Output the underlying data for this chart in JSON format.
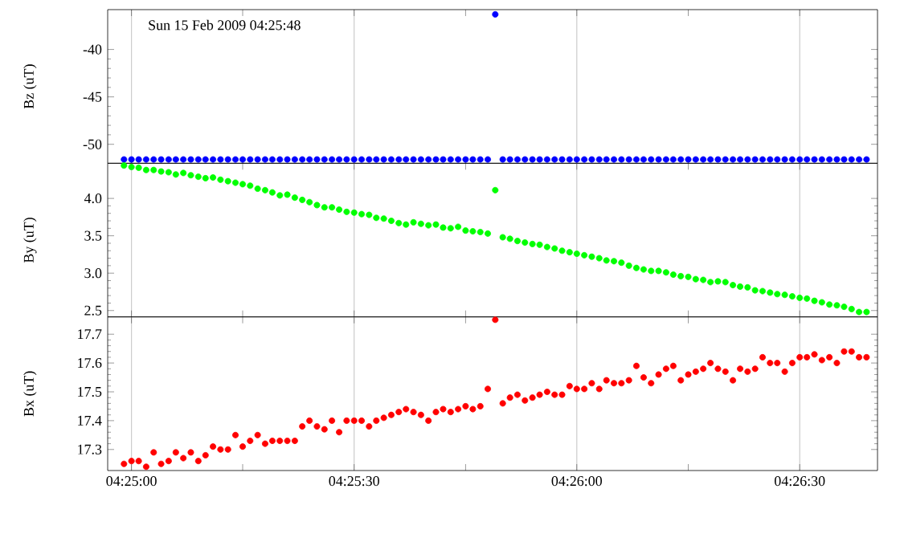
{
  "chart_data": [
    {
      "type": "scatter",
      "ylabel": "Bz (uT)",
      "color": "#0000ff",
      "marker": "circle",
      "grid": "x",
      "tick_labels": "y",
      "annotations": [
        "Sun 15 Feb 2009 04:25:48"
      ],
      "xlim": [
        4.41578,
        4.44458
      ],
      "ylim": [
        -52,
        -35.8
      ],
      "yticks": [
        -50,
        -45,
        -40
      ],
      "x": [
        4.41639,
        4.41667,
        4.41694,
        4.41722,
        4.4175,
        4.41778,
        4.41806,
        4.41833,
        4.41861,
        4.41889,
        4.41917,
        4.41944,
        4.41972,
        4.42,
        4.42028,
        4.42056,
        4.42083,
        4.42111,
        4.42139,
        4.42167,
        4.42194,
        4.42222,
        4.4225,
        4.42278,
        4.42306,
        4.42333,
        4.42361,
        4.42389,
        4.42417,
        4.42444,
        4.42472,
        4.425,
        4.42528,
        4.42556,
        4.42583,
        4.42611,
        4.42639,
        4.42667,
        4.42694,
        4.42722,
        4.4275,
        4.42778,
        4.42806,
        4.42833,
        4.42861,
        4.42889,
        4.42917,
        4.42944,
        4.42972,
        4.43,
        4.43028,
        4.43056,
        4.43083,
        4.43111,
        4.43139,
        4.43167,
        4.43194,
        4.43222,
        4.4325,
        4.43278,
        4.43306,
        4.43333,
        4.43361,
        4.43389,
        4.43417,
        4.43444,
        4.43472,
        4.435,
        4.43528,
        4.43556,
        4.43583,
        4.43611,
        4.43639,
        4.43667,
        4.43694,
        4.43722,
        4.4375,
        4.43778,
        4.43806,
        4.43833,
        4.43861,
        4.43889,
        4.43917,
        4.43944,
        4.43972,
        4.44,
        4.44028,
        4.44056,
        4.44083,
        4.44111,
        4.44139,
        4.44167,
        4.44194,
        4.44222,
        4.4425,
        4.44278,
        4.44306,
        4.44333,
        4.44361,
        4.44389,
        4.44417
      ],
      "values": [
        -51.6,
        -51.6,
        -51.6,
        -51.6,
        -51.6,
        -51.6,
        -51.6,
        -51.6,
        -51.6,
        -51.6,
        -51.6,
        -51.6,
        -51.6,
        -51.6,
        -51.6,
        -51.6,
        -51.6,
        -51.6,
        -51.6,
        -51.6,
        -51.6,
        -51.6,
        -51.6,
        -51.6,
        -51.6,
        -51.6,
        -51.6,
        -51.6,
        -51.6,
        -51.6,
        -51.6,
        -51.6,
        -51.6,
        -51.6,
        -51.6,
        -51.6,
        -51.6,
        -51.6,
        -51.6,
        -51.6,
        -51.6,
        -51.6,
        -51.6,
        -51.6,
        -51.6,
        -51.6,
        -51.6,
        -51.6,
        -51.6,
        -51.6,
        -36.3,
        -51.6,
        -51.6,
        -51.6,
        -51.6,
        -51.6,
        -51.6,
        -51.6,
        -51.6,
        -51.6,
        -51.6,
        -51.6,
        -51.6,
        -51.6,
        -51.6,
        -51.6,
        -51.6,
        -51.6,
        -51.6,
        -51.6,
        -51.6,
        -51.6,
        -51.6,
        -51.6,
        -51.6,
        -51.6,
        -51.6,
        -51.6,
        -51.6,
        -51.6,
        -51.6,
        -51.6,
        -51.6,
        -51.6,
        -51.6,
        -51.6,
        -51.6,
        -51.6,
        -51.6,
        -51.6,
        -51.6,
        -51.6,
        -51.6,
        -51.6,
        -51.6,
        -51.6,
        -51.6,
        -51.6,
        -51.6,
        -51.6,
        -51.6
      ]
    },
    {
      "type": "scatter",
      "ylabel": "By (uT)",
      "color": "#00ff00",
      "marker": "circle",
      "grid": "x",
      "tick_labels": "y",
      "xlim": [
        4.41578,
        4.44458
      ],
      "ylim": [
        2.415,
        4.47
      ],
      "yticks": [
        2.5,
        {
          "value": 3,
          "label": "3.0"
        },
        3.5,
        {
          "value": 4,
          "label": "4.0"
        }
      ],
      "x": [
        4.41639,
        4.41667,
        4.41694,
        4.41722,
        4.4175,
        4.41778,
        4.41806,
        4.41833,
        4.41861,
        4.41889,
        4.41917,
        4.41944,
        4.41972,
        4.42,
        4.42028,
        4.42056,
        4.42083,
        4.42111,
        4.42139,
        4.42167,
        4.42194,
        4.42222,
        4.4225,
        4.42278,
        4.42306,
        4.42333,
        4.42361,
        4.42389,
        4.42417,
        4.42444,
        4.42472,
        4.425,
        4.42528,
        4.42556,
        4.42583,
        4.42611,
        4.42639,
        4.42667,
        4.42694,
        4.42722,
        4.4275,
        4.42778,
        4.42806,
        4.42833,
        4.42861,
        4.42889,
        4.42917,
        4.42944,
        4.42972,
        4.43,
        4.43028,
        4.43056,
        4.43083,
        4.43111,
        4.43139,
        4.43167,
        4.43194,
        4.43222,
        4.4325,
        4.43278,
        4.43306,
        4.43333,
        4.43361,
        4.43389,
        4.43417,
        4.43444,
        4.43472,
        4.435,
        4.43528,
        4.43556,
        4.43583,
        4.43611,
        4.43639,
        4.43667,
        4.43694,
        4.43722,
        4.4375,
        4.43778,
        4.43806,
        4.43833,
        4.43861,
        4.43889,
        4.43917,
        4.43944,
        4.43972,
        4.44,
        4.44028,
        4.44056,
        4.44083,
        4.44111,
        4.44139,
        4.44167,
        4.44194,
        4.44222,
        4.4425,
        4.44278,
        4.44306,
        4.44333,
        4.44361,
        4.44389,
        4.44417
      ],
      "values": [
        4.44,
        4.42,
        4.41,
        4.38,
        4.38,
        4.36,
        4.35,
        4.32,
        4.34,
        4.31,
        4.29,
        4.27,
        4.28,
        4.25,
        4.23,
        4.21,
        4.19,
        4.17,
        4.13,
        4.11,
        4.08,
        4.04,
        4.05,
        4.01,
        3.98,
        3.95,
        3.91,
        3.88,
        3.88,
        3.85,
        3.82,
        3.81,
        3.79,
        3.78,
        3.74,
        3.73,
        3.7,
        3.67,
        3.65,
        3.68,
        3.66,
        3.64,
        3.65,
        3.61,
        3.6,
        3.62,
        3.57,
        3.56,
        3.55,
        3.53,
        4.11,
        3.48,
        3.46,
        3.43,
        3.41,
        3.39,
        3.38,
        3.35,
        3.33,
        3.3,
        3.28,
        3.26,
        3.24,
        3.22,
        3.2,
        3.17,
        3.16,
        3.14,
        3.1,
        3.07,
        3.05,
        3.03,
        3.03,
        3.01,
        2.98,
        2.96,
        2.95,
        2.92,
        2.91,
        2.88,
        2.89,
        2.88,
        2.84,
        2.82,
        2.81,
        2.77,
        2.76,
        2.74,
        2.72,
        2.71,
        2.69,
        2.67,
        2.66,
        2.63,
        2.61,
        2.58,
        2.57,
        2.55,
        2.52,
        2.48,
        2.48
      ]
    },
    {
      "type": "scatter",
      "ylabel": "Bx (uT)",
      "color": "#ff0000",
      "marker": "circle",
      "grid": "x",
      "xlim": [
        4.41578,
        4.44458
      ],
      "ylim": [
        17.227,
        17.76
      ],
      "yticks": [
        17.3,
        17.4,
        17.5,
        17.6,
        17.7
      ],
      "xticks": [
        {
          "value": 4.41667,
          "label": "04:25:00"
        },
        {
          "value": 4.42083,
          "label": null
        },
        {
          "value": 4.425,
          "label": "04:25:30"
        },
        {
          "value": 4.42917,
          "label": null
        },
        {
          "value": 4.43333,
          "label": "04:26:00"
        },
        {
          "value": 4.4375,
          "label": null
        },
        {
          "value": 4.44167,
          "label": "04:26:30"
        }
      ],
      "x": [
        4.41639,
        4.41667,
        4.41694,
        4.41722,
        4.4175,
        4.41778,
        4.41806,
        4.41833,
        4.41861,
        4.41889,
        4.41917,
        4.41944,
        4.41972,
        4.42,
        4.42028,
        4.42056,
        4.42083,
        4.42111,
        4.42139,
        4.42167,
        4.42194,
        4.42222,
        4.4225,
        4.42278,
        4.42306,
        4.42333,
        4.42361,
        4.42389,
        4.42417,
        4.42444,
        4.42472,
        4.425,
        4.42528,
        4.42556,
        4.42583,
        4.42611,
        4.42639,
        4.42667,
        4.42694,
        4.42722,
        4.4275,
        4.42778,
        4.42806,
        4.42833,
        4.42861,
        4.42889,
        4.42917,
        4.42944,
        4.42972,
        4.43,
        4.43028,
        4.43056,
        4.43083,
        4.43111,
        4.43139,
        4.43167,
        4.43194,
        4.43222,
        4.4325,
        4.43278,
        4.43306,
        4.43333,
        4.43361,
        4.43389,
        4.43417,
        4.43444,
        4.43472,
        4.435,
        4.43528,
        4.43556,
        4.43583,
        4.43611,
        4.43639,
        4.43667,
        4.43694,
        4.43722,
        4.4375,
        4.43778,
        4.43806,
        4.43833,
        4.43861,
        4.43889,
        4.43917,
        4.43944,
        4.43972,
        4.44,
        4.44028,
        4.44056,
        4.44083,
        4.44111,
        4.44139,
        4.44167,
        4.44194,
        4.44222,
        4.4425,
        4.44278,
        4.44306,
        4.44333,
        4.44361,
        4.44389,
        4.44417
      ],
      "values": [
        17.25,
        17.26,
        17.26,
        17.24,
        17.29,
        17.25,
        17.26,
        17.29,
        17.27,
        17.29,
        17.26,
        17.28,
        17.31,
        17.3,
        17.3,
        17.35,
        17.31,
        17.33,
        17.35,
        17.32,
        17.33,
        17.33,
        17.33,
        17.33,
        17.38,
        17.4,
        17.38,
        17.37,
        17.4,
        17.36,
        17.4,
        17.4,
        17.4,
        17.38,
        17.4,
        17.41,
        17.42,
        17.43,
        17.44,
        17.43,
        17.42,
        17.4,
        17.43,
        17.44,
        17.43,
        17.44,
        17.45,
        17.44,
        17.45,
        17.51,
        17.75,
        17.46,
        17.48,
        17.49,
        17.47,
        17.48,
        17.49,
        17.5,
        17.49,
        17.49,
        17.52,
        17.51,
        17.51,
        17.53,
        17.51,
        17.54,
        17.53,
        17.53,
        17.54,
        17.59,
        17.55,
        17.53,
        17.56,
        17.58,
        17.59,
        17.54,
        17.56,
        17.57,
        17.58,
        17.6,
        17.58,
        17.57,
        17.54,
        17.58,
        17.57,
        17.58,
        17.62,
        17.6,
        17.6,
        17.57,
        17.6,
        17.62,
        17.62,
        17.63,
        17.61,
        17.62,
        17.6,
        17.64,
        17.64,
        17.62,
        17.62
      ]
    }
  ]
}
